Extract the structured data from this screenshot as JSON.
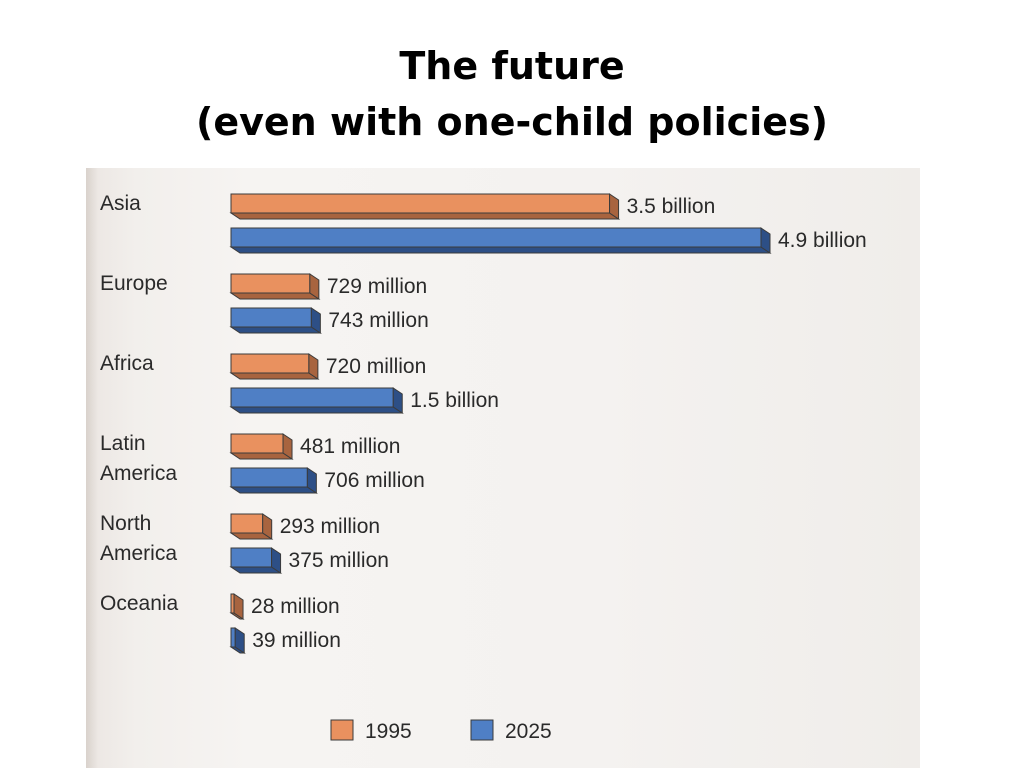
{
  "slide": {
    "title_line1": "The future",
    "title_line2": "(even with one-child policies)"
  },
  "chart_data": {
    "type": "bar",
    "orientation": "horizontal",
    "categories": [
      {
        "label_lines": [
          "Asia"
        ]
      },
      {
        "label_lines": [
          "Europe"
        ]
      },
      {
        "label_lines": [
          "Africa"
        ]
      },
      {
        "label_lines": [
          "Latin",
          "America"
        ]
      },
      {
        "label_lines": [
          "North",
          "America"
        ]
      },
      {
        "label_lines": [
          "Oceania"
        ]
      }
    ],
    "series": [
      {
        "name": "1995",
        "color": "#e9915f",
        "shade": "#a8643f",
        "values": [
          3500,
          729,
          720,
          481,
          293,
          28
        ],
        "labels": [
          "3.5 billion",
          "729 million",
          "720 million",
          "481 million",
          "293 million",
          "28 million"
        ]
      },
      {
        "name": "2025",
        "color": "#4f7fc5",
        "shade": "#2d4f86",
        "values": [
          4900,
          743,
          1500,
          706,
          375,
          39
        ],
        "labels": [
          "4.9 billion",
          "743 million",
          "1.5 billion",
          "706 million",
          "375 million",
          "39 million"
        ]
      }
    ],
    "unit": "millions",
    "legend_position": "bottom",
    "grid": false
  }
}
